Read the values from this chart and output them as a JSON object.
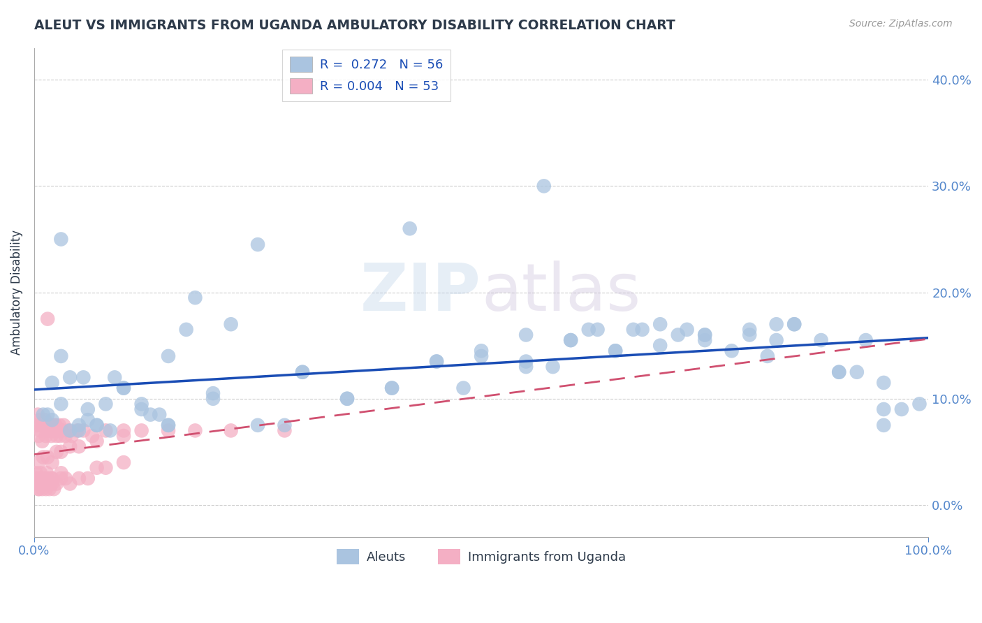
{
  "title": "ALEUT VS IMMIGRANTS FROM UGANDA AMBULATORY DISABILITY CORRELATION CHART",
  "source": "Source: ZipAtlas.com",
  "ylabel": "Ambulatory Disability",
  "xlim": [
    0,
    100
  ],
  "ylim": [
    -3,
    43
  ],
  "yticks": [
    0,
    10,
    20,
    30,
    40
  ],
  "ytick_labels": [
    "0.0%",
    "10.0%",
    "20.0%",
    "30.0%",
    "40.0%"
  ],
  "legend_R_aleut": "R =  0.272",
  "legend_N_aleut": "N = 56",
  "legend_R_uganda": "R = 0.004",
  "legend_N_uganda": "N = 53",
  "aleut_color": "#aac4e0",
  "uganda_color": "#f4afc4",
  "aleut_line_color": "#1a4db5",
  "uganda_line_color": "#d05070",
  "watermark_zip": "ZIP",
  "watermark_atlas": "atlas",
  "grid_color": "#cccccc",
  "background_color": "#ffffff",
  "title_color": "#2d3a4a",
  "source_color": "#999999",
  "tick_color": "#5588cc",
  "aleut_x": [
    1.5,
    3.0,
    5.0,
    7.0,
    8.0,
    10.0,
    13.0,
    15.0,
    17.0,
    20.0,
    22.0,
    30.0,
    35.0,
    40.0,
    45.0,
    48.0,
    50.0,
    55.0,
    57.0,
    60.0,
    63.0,
    65.0,
    68.0,
    70.0,
    72.0,
    75.0,
    78.0,
    80.0,
    83.0,
    85.0,
    88.0,
    90.0,
    93.0,
    95.0,
    97.0,
    99.0,
    2.0,
    4.0,
    6.0,
    9.0,
    12.0,
    18.0,
    25.0,
    42.0,
    58.0,
    62.0,
    67.0,
    73.0,
    82.0,
    92.0,
    3.0,
    5.5,
    8.5,
    15.0,
    28.0,
    55.0
  ],
  "aleut_y": [
    8.5,
    9.5,
    7.5,
    7.5,
    9.5,
    11.0,
    8.5,
    14.0,
    16.5,
    10.5,
    17.0,
    12.5,
    10.0,
    11.0,
    13.5,
    11.0,
    14.0,
    13.0,
    30.0,
    15.5,
    16.5,
    14.5,
    16.5,
    15.0,
    16.0,
    15.5,
    14.5,
    16.5,
    17.0,
    17.0,
    15.5,
    12.5,
    15.5,
    11.5,
    9.0,
    9.5,
    11.5,
    12.0,
    9.0,
    12.0,
    9.0,
    19.5,
    24.5,
    26.0,
    13.0,
    16.5,
    16.5,
    16.5,
    14.0,
    12.5,
    25.0,
    12.0,
    7.0,
    7.5,
    7.5,
    16.0
  ],
  "aleut_x2": [
    75.0,
    83.0,
    95.0,
    3.0,
    6.0,
    10.0,
    14.0,
    20.0,
    30.0,
    40.0,
    50.0,
    60.0,
    70.0,
    80.0,
    90.0,
    5.0,
    15.0,
    25.0,
    35.0,
    45.0,
    55.0,
    65.0,
    75.0,
    85.0,
    95.0,
    1.0,
    2.0,
    4.0,
    7.0,
    12.0
  ],
  "aleut_y2": [
    16.0,
    15.5,
    7.5,
    14.0,
    8.0,
    11.0,
    8.5,
    10.0,
    12.5,
    11.0,
    14.5,
    15.5,
    17.0,
    16.0,
    12.5,
    7.0,
    7.5,
    7.5,
    10.0,
    13.5,
    13.5,
    14.5,
    16.0,
    17.0,
    9.0,
    8.5,
    8.0,
    7.0,
    7.5,
    9.5
  ],
  "uganda_x": [
    0.3,
    0.5,
    0.7,
    0.9,
    1.1,
    1.3,
    1.5,
    1.7,
    1.9,
    2.1,
    2.3,
    2.5,
    2.7,
    2.9,
    3.1,
    3.3,
    3.5,
    3.8,
    4.2,
    4.8,
    5.5,
    6.5,
    8.0,
    10.0,
    12.0,
    15.0,
    18.0,
    22.0,
    28.0,
    0.4,
    0.6,
    0.8,
    1.0,
    1.2,
    1.4,
    1.6,
    1.8,
    2.0,
    2.2,
    2.4,
    2.6,
    2.8,
    3.0,
    0.5,
    1.0,
    1.5,
    2.0,
    2.5,
    3.0,
    4.0,
    5.0,
    7.0,
    10.0
  ],
  "uganda_y": [
    7.5,
    6.5,
    7.0,
    6.0,
    7.5,
    6.5,
    17.5,
    7.0,
    6.5,
    7.0,
    7.5,
    6.5,
    7.0,
    6.5,
    7.0,
    7.5,
    6.5,
    7.0,
    6.5,
    7.0,
    7.0,
    6.5,
    7.0,
    7.0,
    7.0,
    7.0,
    7.0,
    7.0,
    7.0,
    8.5,
    8.0,
    7.5,
    7.5,
    8.0,
    7.5,
    7.0,
    7.0,
    7.5,
    7.0,
    7.5,
    7.0,
    7.5,
    7.0,
    4.0,
    4.5,
    4.5,
    4.0,
    5.0,
    5.0,
    5.5,
    5.5,
    6.0,
    6.5
  ],
  "uganda_x_low": [
    0.2,
    0.3,
    0.4,
    0.5,
    0.6,
    0.7,
    0.8,
    0.9,
    1.0,
    1.1,
    1.2,
    1.3,
    1.4,
    1.5,
    1.6,
    1.7,
    1.8,
    1.9,
    2.0,
    2.2,
    2.5,
    3.0,
    3.5,
    4.0,
    5.0,
    6.0,
    7.0,
    8.0,
    10.0,
    0.5,
    1.0,
    2.0,
    3.0
  ],
  "uganda_y_low": [
    3.0,
    2.5,
    2.0,
    1.5,
    2.5,
    3.0,
    2.0,
    1.5,
    2.0,
    2.5,
    2.0,
    1.5,
    3.0,
    2.5,
    2.0,
    1.5,
    2.0,
    2.5,
    2.0,
    1.5,
    2.0,
    2.5,
    2.5,
    2.0,
    2.5,
    2.5,
    3.5,
    3.5,
    4.0,
    1.5,
    2.0,
    2.5,
    3.0
  ]
}
